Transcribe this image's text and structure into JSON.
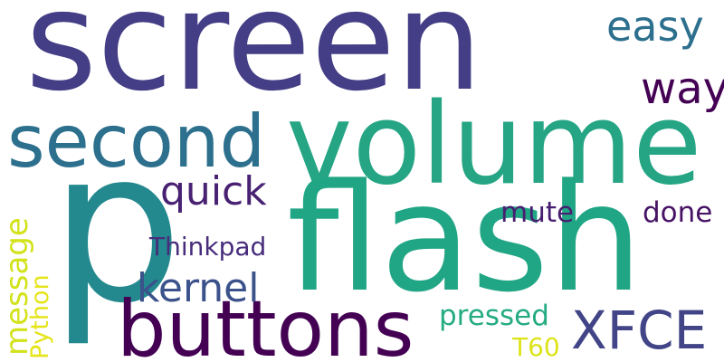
{
  "words": {
    "screen": {
      "text": "screen",
      "color": "#433e85"
    },
    "p": {
      "text": "p",
      "color": "#23898e"
    },
    "volume": {
      "text": "volume",
      "color": "#25a584"
    },
    "second": {
      "text": "second",
      "color": "#2d708e"
    },
    "flash": {
      "text": "flash",
      "color": "#21a685"
    },
    "buttons": {
      "text": "buttons",
      "color": "#440154"
    },
    "easy": {
      "text": "easy",
      "color": "#2d708e"
    },
    "way": {
      "text": "way",
      "color": "#440154"
    },
    "quick": {
      "text": "quick",
      "color": "#482173"
    },
    "message": {
      "text": "message",
      "color": "#d2e21b"
    },
    "Python": {
      "text": "Python",
      "color": "#e5e419"
    },
    "Thinkpad": {
      "text": "Thinkpad",
      "color": "#472d7b"
    },
    "kernel": {
      "text": "kernel",
      "color": "#3b528b"
    },
    "mute": {
      "text": "mute",
      "color": "#481f70"
    },
    "done": {
      "text": "done",
      "color": "#471365"
    },
    "pressed": {
      "text": "pressed",
      "color": "#25ab82"
    },
    "XFCE": {
      "text": "XFCE",
      "color": "#414487"
    },
    "T60": {
      "text": "T60",
      "color": "#dde318"
    }
  }
}
